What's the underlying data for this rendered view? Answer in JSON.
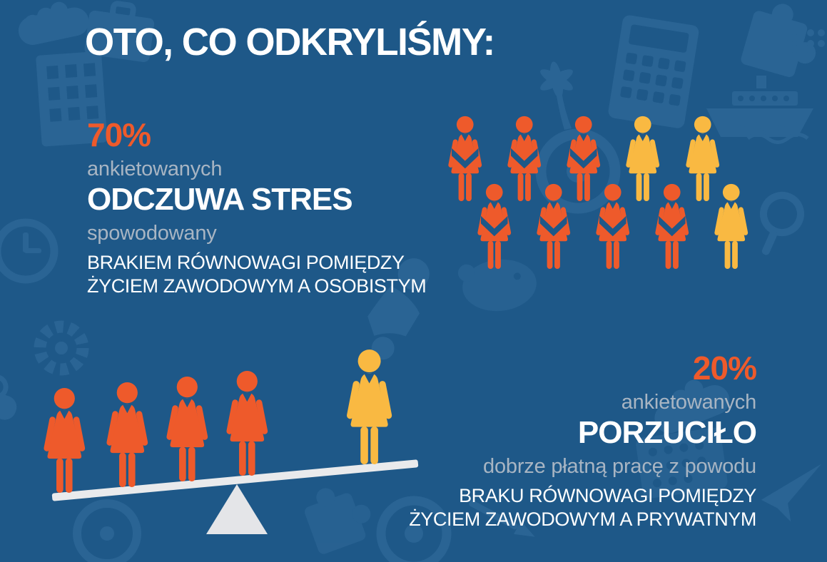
{
  "title": "OTO, CO ODKRYLIŚMY:",
  "colors": {
    "background": "#1E5888",
    "pattern_blue": "#2A6494",
    "orange": "#EE5A2B",
    "yellow": "#F9B942",
    "muted_text": "#A8B5C3",
    "white_text": "#FFFFFF",
    "plank_gray": "#E9EAEC"
  },
  "stat_stress": {
    "percent": "70%",
    "line1": "ankietowanych",
    "headline": "ODCZUWA STRES",
    "line2": "spowodowany",
    "line3": "BRAKIEM RÓWNOWAGI POMIĘDZY",
    "line4": "ŻYCIEM ZAWODOWYM A OSOBISTYM"
  },
  "stat_quit": {
    "percent": "20%",
    "line1": "ankietowanych",
    "headline": "PORZUCIŁO",
    "line2": "dobrze płatną pracę z powodu",
    "line3": "BRAKU RÓWNOWAGI POMIĘDZY",
    "line4": "ŻYCIEM ZAWODOWYM A PRYWATNYM"
  },
  "pictograph": {
    "rows": [
      [
        "orange-chevron",
        "orange-chevron",
        "orange-chevron",
        "yellow-plain",
        "yellow-plain"
      ],
      [
        "orange-chevron",
        "orange-chevron",
        "orange-chevron",
        "orange-chevron",
        "yellow-plain"
      ]
    ]
  },
  "seesaw": {
    "left_figures": [
      "orange-plain",
      "orange-plain",
      "orange-plain",
      "orange-plain"
    ],
    "right_figures": [
      "yellow-plain"
    ]
  },
  "icons": {
    "person": "woman-figure-icon",
    "background_doodles": [
      "handshake-icon",
      "building-icon",
      "calculator-icon",
      "ship-icon",
      "puzzle-icon",
      "target-icon",
      "clock-icon",
      "gear-icon",
      "paper-plane-icon",
      "magnifier-icon",
      "waves-icon",
      "dots-grid-icon"
    ]
  },
  "chart_data": [
    {
      "type": "pictograph",
      "title": "70% ankietowanych odczuwa stres spowodowany brakiem równowagi pomiędzy życiem zawodowym a osobistym",
      "value_percent": 70,
      "total_icons": 10,
      "highlighted_icons": 7,
      "other_icons": 3,
      "highlight_color": "#EE5A2B",
      "other_color": "#F9B942",
      "layout": "two staggered rows of 5 woman figures"
    },
    {
      "type": "pictograph-balance",
      "title": "20% ankietowanych porzuciło dobrze płatną pracę z powodu braku równowagi pomiędzy życiem zawodowym a prywatnym",
      "value_percent": 20,
      "left_icons": 4,
      "right_icons": 1,
      "left_color": "#EE5A2B",
      "right_color": "#F9B942",
      "layout": "seesaw tilted left-down with 4 figures left, 1 figure right"
    }
  ]
}
